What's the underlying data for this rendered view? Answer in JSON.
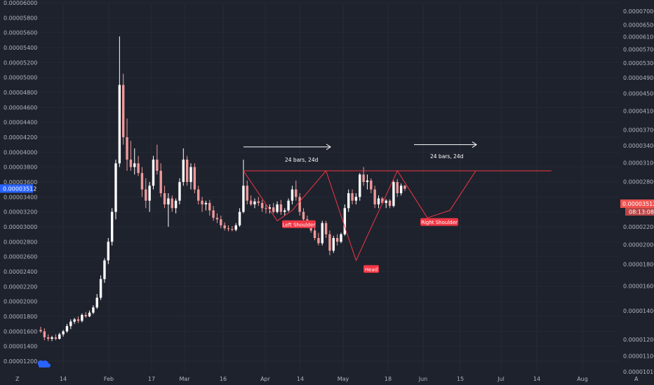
{
  "chart_data": {
    "type": "candlestick",
    "colors": {
      "background": "#1e222d",
      "up": "#ffffff",
      "down": "#ef9a9a",
      "pattern": "#f23645",
      "grid": "#2a2e39",
      "price_badge_left": "#2962ff",
      "price_badge_right": "#ef5350"
    },
    "x_ticks": [
      "14",
      "Feb",
      "17",
      "Mar",
      "16",
      "Apr",
      "14",
      "May",
      "18",
      "Jun",
      "15",
      "Jul",
      "14",
      "Aug"
    ],
    "y_left": {
      "min": 1.1e-06,
      "max": 6e-06,
      "ticks": [
        "0.00001200",
        "0.00001400",
        "0.00001600",
        "0.00001800",
        "0.00002000",
        "0.00002200",
        "0.00002400",
        "0.00002600",
        "0.00002800",
        "0.00003000",
        "0.00003200",
        "0.00003400",
        "0.00003600",
        "0.00003800",
        "0.00004000",
        "0.00004200",
        "0.00004400",
        "0.00004600",
        "0.00004800",
        "0.00005000",
        "0.00005200",
        "0.00005400",
        "0.00005600",
        "0.00005800",
        "0.00006000"
      ]
    },
    "y_right": {
      "ticks": [
        "0.00001010",
        "0.00001100",
        "0.00001200",
        "0.00001400",
        "0.00001600",
        "0.00001800",
        "0.00002000",
        "0.00002200",
        "0.00002500",
        "0.00002800",
        "0.00003100",
        "0.00003400",
        "0.00003700",
        "0.00004100",
        "0.00004500",
        "0.00004900",
        "0.00005300",
        "0.00005700",
        "0.00006100",
        "0.00006500",
        "0.00007000"
      ]
    },
    "current_price": "0.00003512",
    "countdown": "08:13:08",
    "corner_left": "Z",
    "corner_right": "A",
    "annotations": {
      "range_label_1": "24 bars, 24d",
      "range_label_2": "24 bars, 24d",
      "left_shoulder": "Left Shoulder",
      "head": "Head",
      "right_shoulder": "Right Shoulder"
    },
    "candles": [
      {
        "o": 1.62,
        "h": 1.66,
        "l": 1.58,
        "c": 1.6
      },
      {
        "o": 1.6,
        "h": 1.64,
        "l": 1.48,
        "c": 1.52
      },
      {
        "o": 1.52,
        "h": 1.56,
        "l": 1.47,
        "c": 1.5
      },
      {
        "o": 1.5,
        "h": 1.54,
        "l": 1.47,
        "c": 1.52
      },
      {
        "o": 1.52,
        "h": 1.56,
        "l": 1.48,
        "c": 1.5
      },
      {
        "o": 1.5,
        "h": 1.58,
        "l": 1.49,
        "c": 1.56
      },
      {
        "o": 1.56,
        "h": 1.62,
        "l": 1.53,
        "c": 1.6
      },
      {
        "o": 1.6,
        "h": 1.7,
        "l": 1.58,
        "c": 1.67
      },
      {
        "o": 1.67,
        "h": 1.76,
        "l": 1.63,
        "c": 1.73
      },
      {
        "o": 1.73,
        "h": 1.78,
        "l": 1.7,
        "c": 1.76
      },
      {
        "o": 1.76,
        "h": 1.8,
        "l": 1.71,
        "c": 1.74
      },
      {
        "o": 1.74,
        "h": 1.84,
        "l": 1.72,
        "c": 1.82
      },
      {
        "o": 1.82,
        "h": 1.86,
        "l": 1.78,
        "c": 1.8
      },
      {
        "o": 1.8,
        "h": 1.88,
        "l": 1.79,
        "c": 1.85
      },
      {
        "o": 1.85,
        "h": 1.95,
        "l": 1.83,
        "c": 1.92
      },
      {
        "o": 1.92,
        "h": 2.1,
        "l": 1.9,
        "c": 2.05
      },
      {
        "o": 2.05,
        "h": 2.35,
        "l": 2.02,
        "c": 2.3
      },
      {
        "o": 2.3,
        "h": 2.58,
        "l": 2.25,
        "c": 2.55
      },
      {
        "o": 2.55,
        "h": 2.85,
        "l": 2.5,
        "c": 2.8
      },
      {
        "o": 2.8,
        "h": 3.25,
        "l": 2.75,
        "c": 3.2
      },
      {
        "o": 3.2,
        "h": 3.9,
        "l": 3.1,
        "c": 3.85
      },
      {
        "o": 3.85,
        "h": 5.55,
        "l": 3.8,
        "c": 4.9
      },
      {
        "o": 4.9,
        "h": 5.05,
        "l": 4.1,
        "c": 4.2
      },
      {
        "o": 4.2,
        "h": 4.45,
        "l": 3.75,
        "c": 3.9
      },
      {
        "o": 3.9,
        "h": 4.15,
        "l": 3.75,
        "c": 3.8
      },
      {
        "o": 3.8,
        "h": 4.05,
        "l": 3.7,
        "c": 3.85
      },
      {
        "o": 3.85,
        "h": 3.95,
        "l": 3.68,
        "c": 3.72
      },
      {
        "o": 3.72,
        "h": 3.8,
        "l": 3.4,
        "c": 3.5
      },
      {
        "o": 3.5,
        "h": 3.65,
        "l": 3.25,
        "c": 3.35
      },
      {
        "o": 3.35,
        "h": 3.6,
        "l": 3.2,
        "c": 3.55
      },
      {
        "o": 3.55,
        "h": 3.95,
        "l": 3.5,
        "c": 3.9
      },
      {
        "o": 3.9,
        "h": 4.1,
        "l": 3.7,
        "c": 3.75
      },
      {
        "o": 3.75,
        "h": 3.85,
        "l": 3.4,
        "c": 3.45
      },
      {
        "o": 3.45,
        "h": 3.55,
        "l": 3.25,
        "c": 3.3
      },
      {
        "o": 3.3,
        "h": 3.45,
        "l": 3.0,
        "c": 3.38
      },
      {
        "o": 3.38,
        "h": 3.42,
        "l": 3.2,
        "c": 3.25
      },
      {
        "o": 3.25,
        "h": 3.38,
        "l": 3.18,
        "c": 3.35
      },
      {
        "o": 3.35,
        "h": 3.65,
        "l": 3.3,
        "c": 3.6
      },
      {
        "o": 3.6,
        "h": 4.05,
        "l": 3.55,
        "c": 3.9
      },
      {
        "o": 3.9,
        "h": 3.95,
        "l": 3.55,
        "c": 3.6
      },
      {
        "o": 3.6,
        "h": 3.85,
        "l": 3.5,
        "c": 3.8
      },
      {
        "o": 3.8,
        "h": 3.85,
        "l": 3.45,
        "c": 3.5
      },
      {
        "o": 3.5,
        "h": 3.55,
        "l": 3.3,
        "c": 3.35
      },
      {
        "o": 3.35,
        "h": 3.4,
        "l": 3.2,
        "c": 3.3
      },
      {
        "o": 3.3,
        "h": 3.35,
        "l": 3.22,
        "c": 3.32
      },
      {
        "o": 3.32,
        "h": 3.36,
        "l": 3.15,
        "c": 3.22
      },
      {
        "o": 3.22,
        "h": 3.28,
        "l": 3.08,
        "c": 3.12
      },
      {
        "o": 3.12,
        "h": 3.18,
        "l": 3.05,
        "c": 3.1
      },
      {
        "o": 3.1,
        "h": 3.15,
        "l": 2.98,
        "c": 3.02
      },
      {
        "o": 3.02,
        "h": 3.06,
        "l": 2.95,
        "c": 2.98
      },
      {
        "o": 2.98,
        "h": 3.02,
        "l": 2.94,
        "c": 2.97
      },
      {
        "o": 2.97,
        "h": 3.01,
        "l": 2.94,
        "c": 2.96
      },
      {
        "o": 2.96,
        "h": 3.05,
        "l": 2.94,
        "c": 3.02
      },
      {
        "o": 3.02,
        "h": 3.25,
        "l": 3.0,
        "c": 3.2
      },
      {
        "o": 3.2,
        "h": 3.9,
        "l": 3.18,
        "c": 3.55
      },
      {
        "o": 3.55,
        "h": 3.62,
        "l": 3.3,
        "c": 3.35
      },
      {
        "o": 3.35,
        "h": 3.42,
        "l": 3.28,
        "c": 3.3
      },
      {
        "o": 3.3,
        "h": 3.38,
        "l": 3.25,
        "c": 3.34
      },
      {
        "o": 3.34,
        "h": 3.4,
        "l": 3.28,
        "c": 3.32
      },
      {
        "o": 3.32,
        "h": 3.36,
        "l": 3.2,
        "c": 3.25
      },
      {
        "o": 3.25,
        "h": 3.3,
        "l": 3.18,
        "c": 3.24
      },
      {
        "o": 3.24,
        "h": 3.3,
        "l": 3.18,
        "c": 3.26
      },
      {
        "o": 3.26,
        "h": 3.32,
        "l": 3.18,
        "c": 3.2
      },
      {
        "o": 3.2,
        "h": 3.34,
        "l": 3.18,
        "c": 3.3
      },
      {
        "o": 3.3,
        "h": 3.36,
        "l": 3.16,
        "c": 3.2
      },
      {
        "o": 3.2,
        "h": 3.25,
        "l": 3.15,
        "c": 3.22
      },
      {
        "o": 3.22,
        "h": 3.38,
        "l": 3.2,
        "c": 3.35
      },
      {
        "o": 3.35,
        "h": 3.55,
        "l": 3.3,
        "c": 3.5
      },
      {
        "o": 3.5,
        "h": 3.62,
        "l": 3.35,
        "c": 3.4
      },
      {
        "o": 3.4,
        "h": 3.45,
        "l": 3.15,
        "c": 3.2
      },
      {
        "o": 3.2,
        "h": 3.25,
        "l": 3.05,
        "c": 3.1
      },
      {
        "o": 3.1,
        "h": 3.15,
        "l": 2.98,
        "c": 3.0
      },
      {
        "o": 3.0,
        "h": 3.05,
        "l": 2.92,
        "c": 2.95
      },
      {
        "o": 2.95,
        "h": 3.0,
        "l": 2.82,
        "c": 2.85
      },
      {
        "o": 2.85,
        "h": 2.92,
        "l": 2.75,
        "c": 2.78
      },
      {
        "o": 2.78,
        "h": 3.08,
        "l": 2.75,
        "c": 3.05
      },
      {
        "o": 3.05,
        "h": 3.08,
        "l": 2.85,
        "c": 2.9
      },
      {
        "o": 2.9,
        "h": 2.95,
        "l": 2.62,
        "c": 2.68
      },
      {
        "o": 2.68,
        "h": 2.88,
        "l": 2.65,
        "c": 2.85
      },
      {
        "o": 2.85,
        "h": 2.9,
        "l": 2.75,
        "c": 2.8
      },
      {
        "o": 2.8,
        "h": 2.92,
        "l": 2.78,
        "c": 2.9
      },
      {
        "o": 2.9,
        "h": 3.3,
        "l": 2.88,
        "c": 3.25
      },
      {
        "o": 3.25,
        "h": 3.5,
        "l": 3.2,
        "c": 3.45
      },
      {
        "o": 3.45,
        "h": 3.5,
        "l": 3.3,
        "c": 3.35
      },
      {
        "o": 3.35,
        "h": 3.45,
        "l": 3.3,
        "c": 3.4
      },
      {
        "o": 3.4,
        "h": 3.72,
        "l": 3.35,
        "c": 3.7
      },
      {
        "o": 3.7,
        "h": 3.8,
        "l": 3.55,
        "c": 3.6
      },
      {
        "o": 3.6,
        "h": 3.7,
        "l": 3.5,
        "c": 3.62
      },
      {
        "o": 3.62,
        "h": 3.65,
        "l": 3.45,
        "c": 3.5
      },
      {
        "o": 3.5,
        "h": 3.55,
        "l": 3.25,
        "c": 3.3
      },
      {
        "o": 3.3,
        "h": 3.42,
        "l": 3.25,
        "c": 3.38
      },
      {
        "o": 3.38,
        "h": 3.4,
        "l": 3.3,
        "c": 3.32
      },
      {
        "o": 3.32,
        "h": 3.37,
        "l": 3.25,
        "c": 3.35
      },
      {
        "o": 3.35,
        "h": 3.37,
        "l": 3.25,
        "c": 3.28
      },
      {
        "o": 3.28,
        "h": 3.62,
        "l": 3.26,
        "c": 3.6
      },
      {
        "o": 3.6,
        "h": 3.64,
        "l": 3.4,
        "c": 3.45
      },
      {
        "o": 3.45,
        "h": 3.58,
        "l": 3.42,
        "c": 3.55
      },
      {
        "o": 3.55,
        "h": 3.56,
        "l": 3.48,
        "c": 3.51
      }
    ]
  }
}
